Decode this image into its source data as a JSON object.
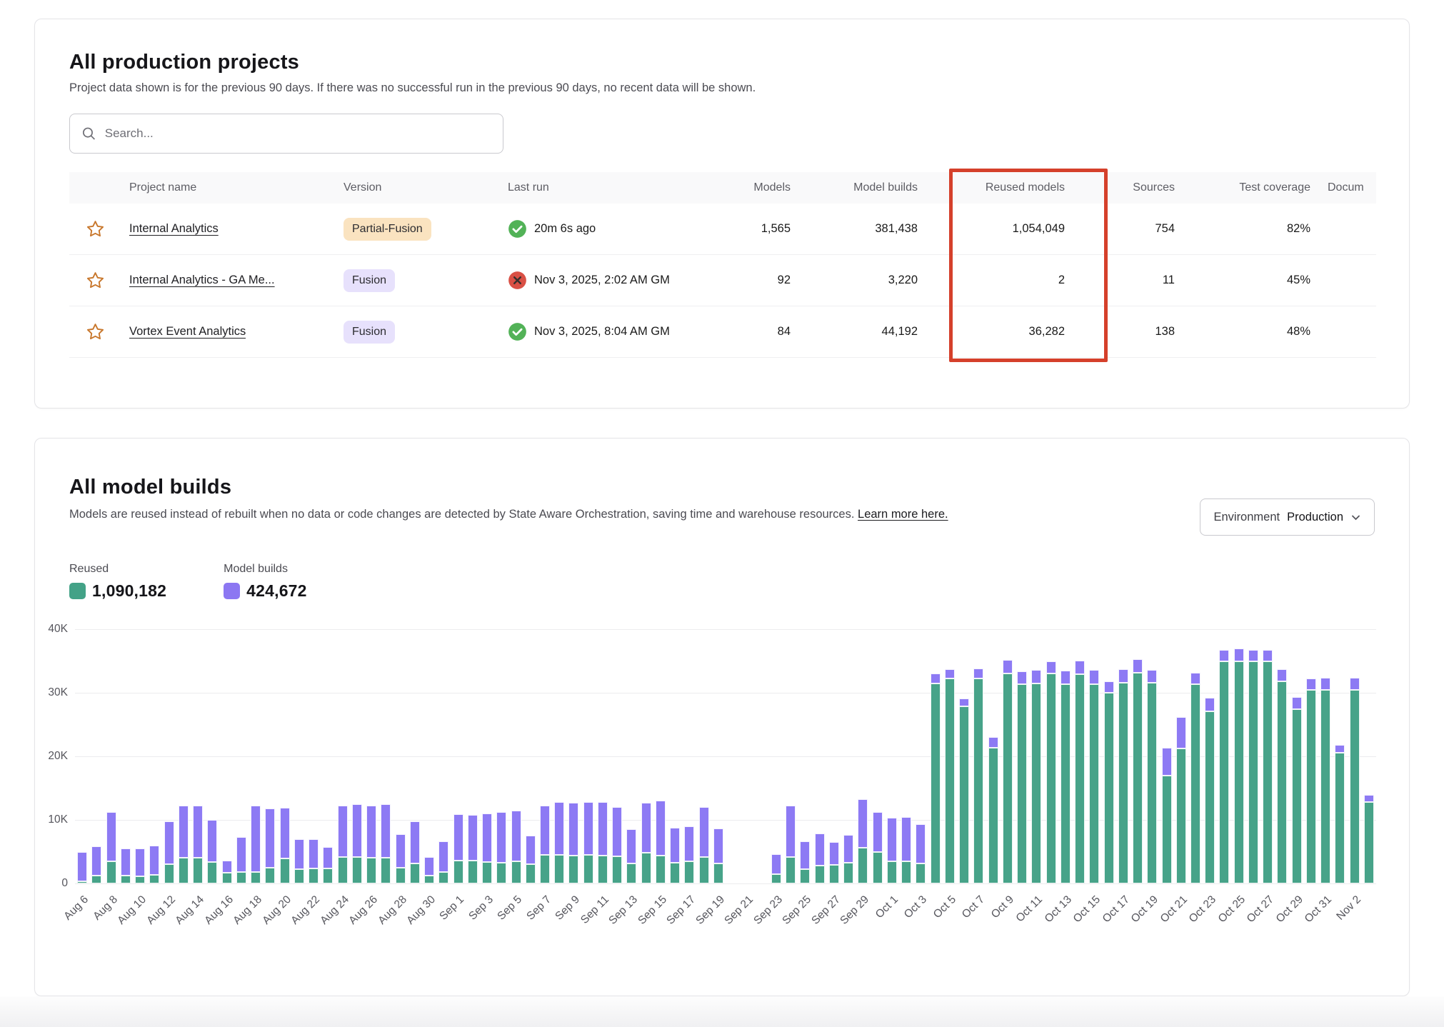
{
  "projects_panel": {
    "title": "All production projects",
    "subtitle": "Project data shown is for the previous 90 days. If there was no successful run in the previous 90 days, no recent data will be shown.",
    "search_placeholder": "Search...",
    "columns": {
      "star": "",
      "name": "Project name",
      "version": "Version",
      "last_run": "Last run",
      "models": "Models",
      "model_builds": "Model builds",
      "reused_models": "Reused models",
      "sources": "Sources",
      "test_coverage": "Test coverage",
      "documentation": "Docum"
    },
    "highlight": {
      "column": "Reused models",
      "color": "#d5402b"
    },
    "rows": [
      {
        "name": "Internal Analytics",
        "version": "Partial-Fusion",
        "version_style": "partial",
        "status": "success",
        "last_run": "20m 6s ago",
        "models": "1,565",
        "model_builds": "381,438",
        "reused_models": "1,054,049",
        "sources": "754",
        "test_coverage": "82%"
      },
      {
        "name": "Internal Analytics - GA Me...",
        "version": "Fusion",
        "version_style": "fusion",
        "status": "error",
        "last_run": "Nov 3, 2025, 2:02 AM GM",
        "models": "92",
        "model_builds": "3,220",
        "reused_models": "2",
        "sources": "11",
        "test_coverage": "45%"
      },
      {
        "name": "Vortex Event Analytics",
        "version": "Fusion",
        "version_style": "fusion",
        "status": "success",
        "last_run": "Nov 3, 2025, 8:04 AM GM",
        "models": "84",
        "model_builds": "44,192",
        "reused_models": "36,282",
        "sources": "138",
        "test_coverage": "48%"
      }
    ]
  },
  "builds_panel": {
    "title": "All model builds",
    "description": "Models are reused instead of rebuilt when no data or code changes are detected by State Aware Orchestration, saving time and warehouse resources.",
    "learn_more": "Learn more here.",
    "environment_label": "Environment",
    "environment_value": "Production",
    "legend": [
      {
        "label": "Reused",
        "value": "1,090,182",
        "color": "#43a287"
      },
      {
        "label": "Model builds",
        "value": "424,672",
        "color": "#8c77f2"
      }
    ]
  },
  "chart_data": {
    "type": "bar",
    "stacked": true,
    "title": "All model builds",
    "xlabel": "",
    "ylabel": "",
    "ylim": [
      0,
      40000
    ],
    "ytick_labels": [
      "0",
      "10K",
      "20K",
      "30K",
      "40K"
    ],
    "yticks": [
      0,
      10000,
      20000,
      30000,
      40000
    ],
    "grid": true,
    "legend_position": "top-left",
    "x_tick_every": 2,
    "x": [
      "Aug 6",
      "Aug 7",
      "Aug 8",
      "Aug 9",
      "Aug 10",
      "Aug 11",
      "Aug 12",
      "Aug 13",
      "Aug 14",
      "Aug 15",
      "Aug 16",
      "Aug 17",
      "Aug 18",
      "Aug 19",
      "Aug 20",
      "Aug 21",
      "Aug 22",
      "Aug 23",
      "Aug 24",
      "Aug 25",
      "Aug 26",
      "Aug 27",
      "Aug 28",
      "Aug 29",
      "Aug 30",
      "Aug 31",
      "Sep 1",
      "Sep 2",
      "Sep 3",
      "Sep 4",
      "Sep 5",
      "Sep 6",
      "Sep 7",
      "Sep 8",
      "Sep 9",
      "Sep 10",
      "Sep 11",
      "Sep 12",
      "Sep 13",
      "Sep 14",
      "Sep 15",
      "Sep 16",
      "Sep 17",
      "Sep 18",
      "Sep 19",
      "Sep 20",
      "Sep 21",
      "Sep 22",
      "Sep 23",
      "Sep 24",
      "Sep 25",
      "Sep 26",
      "Sep 27",
      "Sep 28",
      "Sep 29",
      "Sep 30",
      "Oct 1",
      "Oct 2",
      "Oct 3",
      "Oct 4",
      "Oct 5",
      "Oct 6",
      "Oct 7",
      "Oct 8",
      "Oct 9",
      "Oct 10",
      "Oct 11",
      "Oct 12",
      "Oct 13",
      "Oct 14",
      "Oct 15",
      "Oct 16",
      "Oct 17",
      "Oct 18",
      "Oct 19",
      "Oct 20",
      "Oct 21",
      "Oct 22",
      "Oct 23",
      "Oct 24",
      "Oct 25",
      "Oct 26",
      "Oct 27",
      "Oct 28",
      "Oct 29",
      "Oct 30",
      "Oct 31",
      "Nov 1",
      "Nov 2",
      "Nov 3"
    ],
    "series": [
      {
        "name": "Reused",
        "color": "#47a389",
        "values": [
          300,
          1200,
          3500,
          1200,
          1100,
          1400,
          3000,
          4000,
          4100,
          3400,
          1700,
          1800,
          1800,
          2500,
          3900,
          2300,
          2400,
          2400,
          4200,
          4200,
          4000,
          4100,
          2500,
          3200,
          1200,
          1800,
          3600,
          3600,
          3400,
          3300,
          3500,
          3000,
          4500,
          4500,
          4400,
          4500,
          4400,
          4300,
          3200,
          4800,
          4400,
          3300,
          3500,
          4200,
          3100,
          0,
          0,
          0,
          1500,
          4200,
          2200,
          2800,
          2900,
          3300,
          5600,
          5000,
          3500,
          3500,
          3200,
          31500,
          32200,
          27900,
          32300,
          21300,
          33000,
          31300,
          31500,
          33000,
          31400,
          32900,
          31400,
          30000,
          31600,
          33200,
          31600,
          17000,
          21200,
          31300,
          27100,
          34900,
          35000,
          34900,
          34900,
          31800,
          27400,
          30500,
          30500,
          20600,
          30400,
          12800
        ]
      },
      {
        "name": "Model builds",
        "color": "#8d7af4",
        "values": [
          4700,
          4600,
          7700,
          4300,
          4400,
          4500,
          6800,
          8200,
          8200,
          6600,
          1900,
          5500,
          10500,
          9300,
          8000,
          4700,
          4600,
          3300,
          8000,
          8300,
          8300,
          8400,
          5200,
          6600,
          3000,
          4800,
          7300,
          7200,
          7600,
          7900,
          8000,
          4500,
          7700,
          8300,
          8300,
          8300,
          8400,
          7700,
          5300,
          7900,
          8600,
          5500,
          5500,
          7800,
          5600,
          0,
          0,
          0,
          3100,
          8000,
          4400,
          5100,
          3600,
          4300,
          7700,
          6200,
          6800,
          7000,
          6100,
          1500,
          1500,
          1200,
          1500,
          1700,
          2200,
          2100,
          2100,
          2000,
          2100,
          2200,
          2200,
          1800,
          2100,
          2100,
          2000,
          4300,
          5000,
          1900,
          2100,
          1900,
          2000,
          1900,
          1900,
          1900,
          1900,
          1800,
          1900,
          1200,
          2000,
          1100
        ]
      }
    ]
  }
}
